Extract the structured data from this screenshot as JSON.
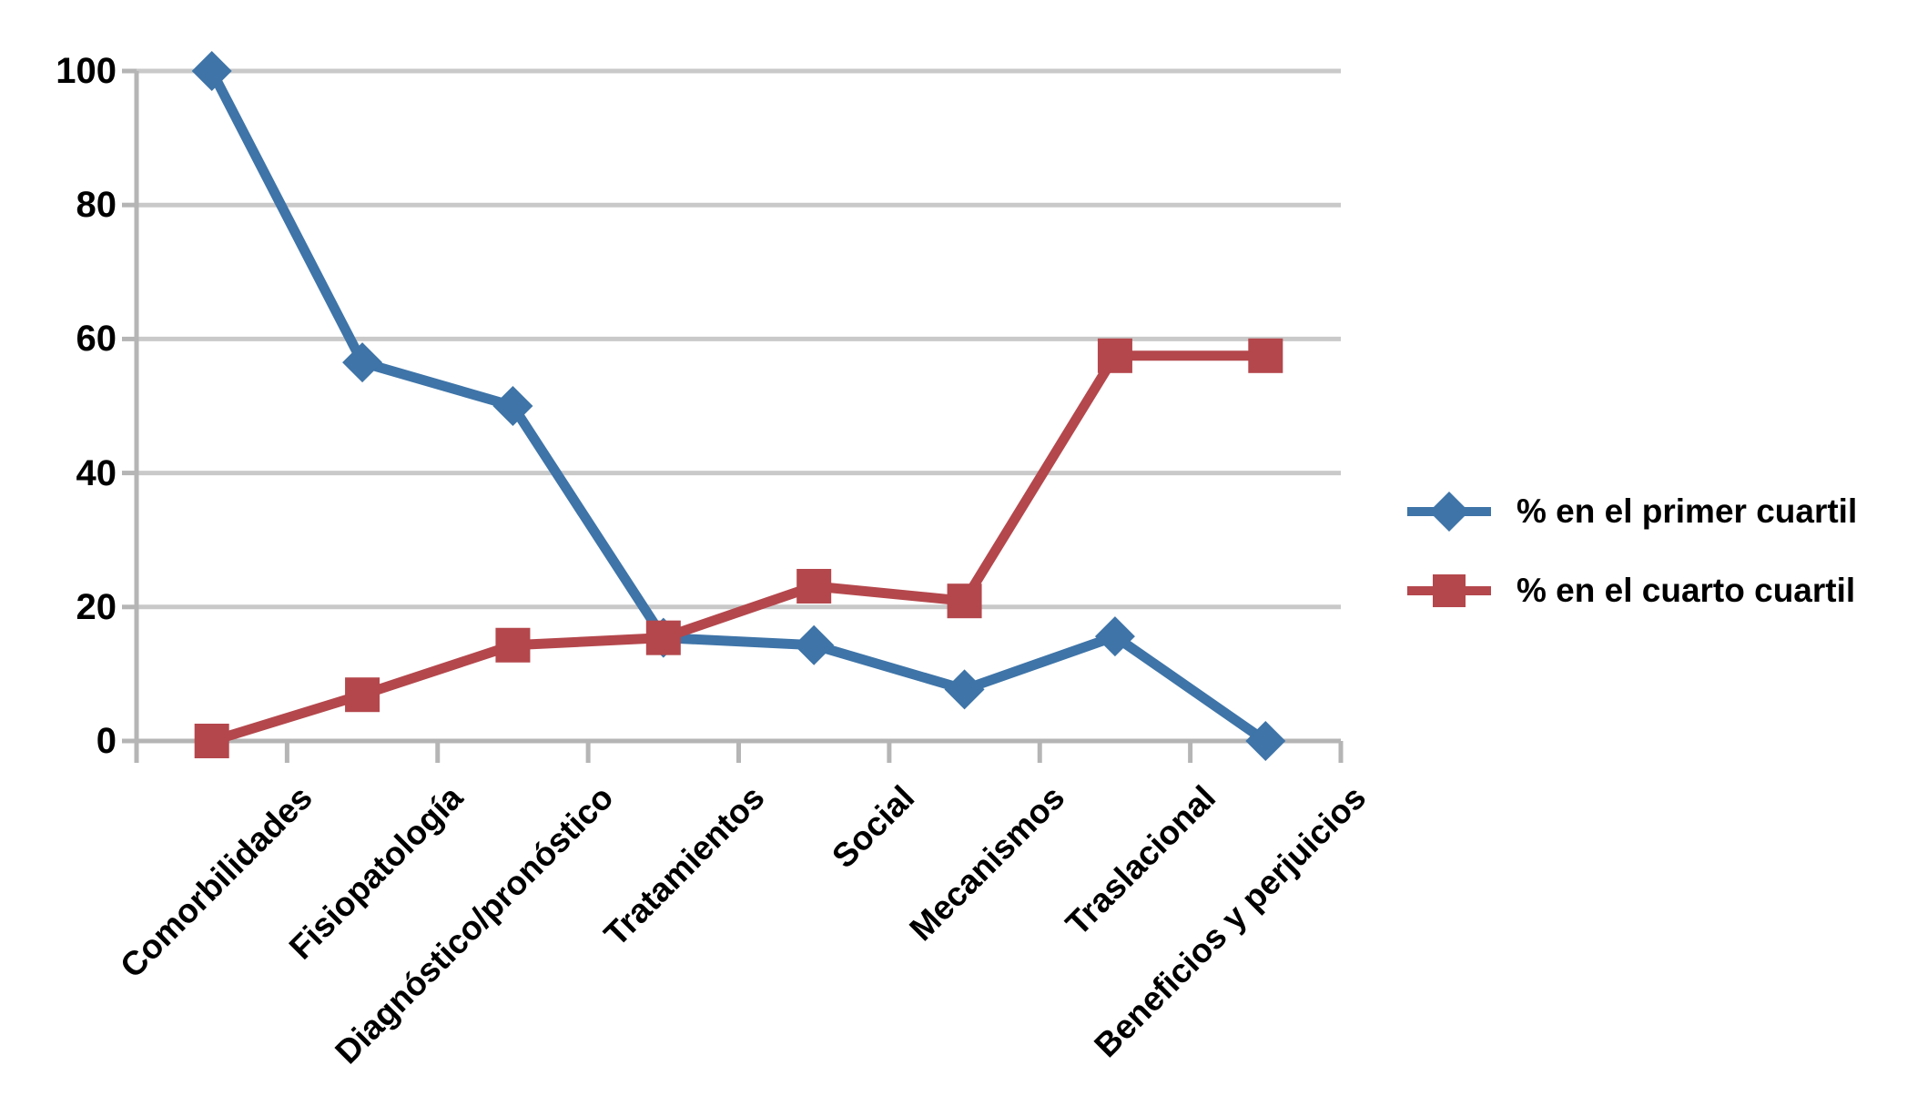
{
  "page": {
    "background_color": "#ffffff"
  },
  "chart_data": {
    "type": "line",
    "title": "",
    "xlabel": "",
    "ylabel": "",
    "categories": [
      "Comorbilidades",
      "Fisiopatología",
      "Diagnóstico/pronóstico",
      "Tratamientos",
      "Social",
      "Mecanismos",
      "Traslacional",
      "Beneficios y perjuicios"
    ],
    "series": [
      {
        "name": "% en el primer cuartil",
        "marker": "diamond",
        "color": "#3E74A8",
        "values": [
          100,
          56.5,
          50,
          15.4,
          14.3,
          7.7,
          15.6,
          0
        ]
      },
      {
        "name": "% en el cuarto cuartil",
        "marker": "square",
        "color": "#B4474C",
        "values": [
          0,
          6.9,
          14.3,
          15.4,
          23.1,
          20.9,
          57.5,
          57.5
        ]
      }
    ],
    "y_axis": {
      "min": 0,
      "max": 100,
      "step": 20,
      "tick_labels": [
        "100",
        "80",
        "60",
        "40",
        "20",
        "0"
      ]
    },
    "x_axis": {
      "label_rotation_deg": 45
    },
    "grid": {
      "show_horizontal": true,
      "gridline_color": "#C9C9C9",
      "axis_color": "#B5B5B5"
    },
    "legend": {
      "position": "right"
    }
  }
}
